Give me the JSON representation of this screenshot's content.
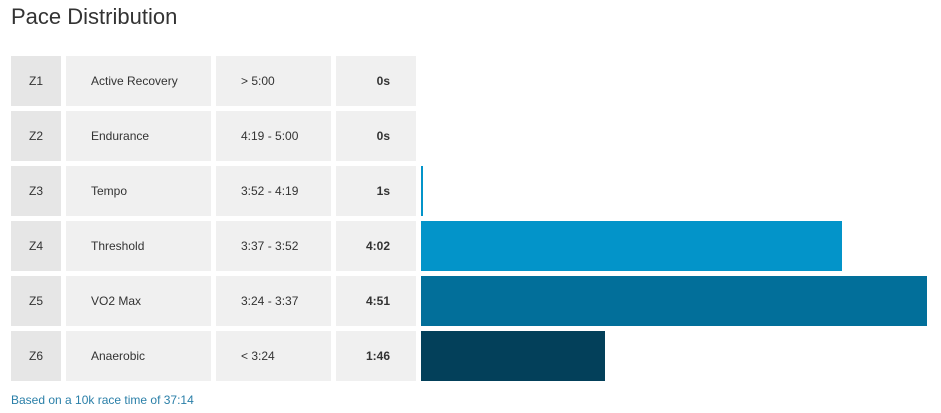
{
  "title": "Pace Distribution",
  "footnote": "Based on a 10k race time of 37:14",
  "chart_data": {
    "type": "bar",
    "orientation": "horizontal",
    "title": "Pace Distribution",
    "categories": [
      "Active Recovery",
      "Endurance",
      "Tempo",
      "Threshold",
      "VO2 Max",
      "Anaerobic"
    ],
    "zones": [
      {
        "zone": "Z1",
        "name": "Active Recovery",
        "range": "> 5:00",
        "time": "0s",
        "seconds": 0,
        "color": "#0394c9"
      },
      {
        "zone": "Z2",
        "name": "Endurance",
        "range": "4:19 - 5:00",
        "time": "0s",
        "seconds": 0,
        "color": "#0394c9"
      },
      {
        "zone": "Z3",
        "name": "Tempo",
        "range": "3:52 - 4:19",
        "time": "1s",
        "seconds": 1,
        "color": "#0394c9"
      },
      {
        "zone": "Z4",
        "name": "Threshold",
        "range": "3:37 - 3:52",
        "time": "4:02",
        "seconds": 242,
        "color": "#0394c9"
      },
      {
        "zone": "Z5",
        "name": "VO2 Max",
        "range": "3:24 - 3:37",
        "time": "4:51",
        "seconds": 291,
        "color": "#026f9a"
      },
      {
        "zone": "Z6",
        "name": "Anaerobic",
        "range": "< 3:24",
        "time": "1:46",
        "seconds": 106,
        "color": "#03405a"
      }
    ]
  }
}
